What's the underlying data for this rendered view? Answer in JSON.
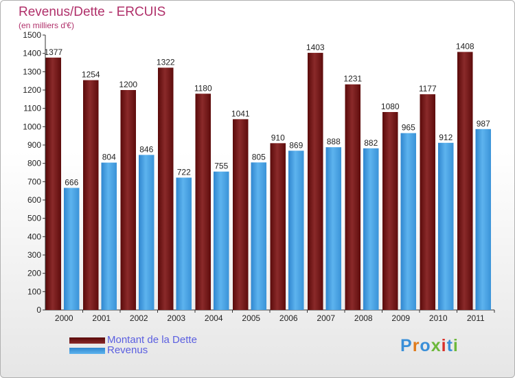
{
  "chart_data": {
    "type": "bar",
    "title": "Revenus/Dette - ERCUIS",
    "subtitle": "(en milliers d'€)",
    "categories": [
      "2000",
      "2001",
      "2002",
      "2003",
      "2004",
      "2005",
      "2006",
      "2007",
      "2008",
      "2009",
      "2010",
      "2011"
    ],
    "series": [
      {
        "name": "Montant de la Dette",
        "color": "#7a1c1c",
        "values": [
          1377,
          1254,
          1200,
          1322,
          1180,
          1041,
          910,
          1403,
          1231,
          1080,
          1177,
          1408
        ]
      },
      {
        "name": "Revenus",
        "color": "#4da6e8",
        "values": [
          666,
          804,
          846,
          722,
          755,
          805,
          869,
          888,
          882,
          965,
          912,
          987
        ]
      }
    ],
    "ylim": [
      0,
      1500
    ],
    "yticks": [
      0,
      100,
      200,
      300,
      400,
      500,
      600,
      700,
      800,
      900,
      1000,
      1100,
      1200,
      1300,
      1400,
      1500
    ],
    "grid": false,
    "legend_position": "bottom-left"
  },
  "logo": {
    "text": "Proxiti"
  }
}
